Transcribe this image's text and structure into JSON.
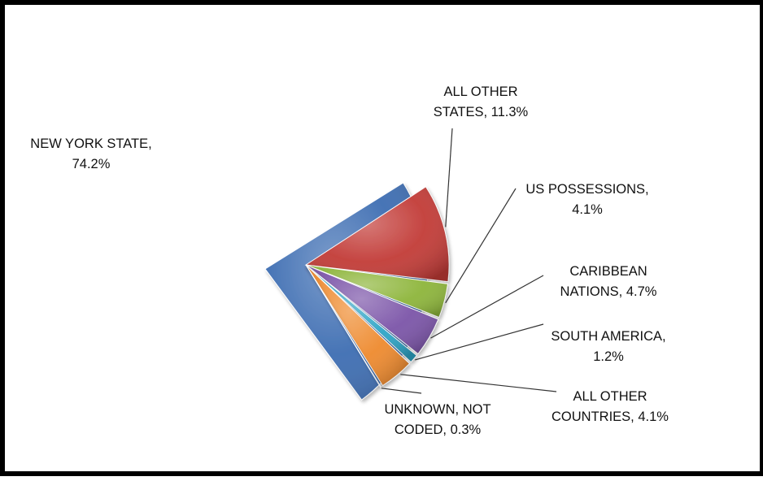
{
  "chart_data": {
    "type": "pie",
    "style": "exploded 3D pie",
    "legend": "none",
    "slices": [
      {
        "name": "NEW YORK STATE",
        "value": 74.2,
        "label_lines": [
          "NEW YORK STATE,",
          "74.2%"
        ],
        "color": "#3D6DB2"
      },
      {
        "name": "ALL OTHER STATES",
        "value": 11.3,
        "label_lines": [
          "ALL OTHER",
          "STATES,  11.3%"
        ],
        "color": "#C23B37"
      },
      {
        "name": "US POSSESSIONS",
        "value": 4.1,
        "label_lines": [
          "US POSSESSIONS,",
          "4.1%"
        ],
        "color": "#8DB53A"
      },
      {
        "name": "CARIBBEAN NATIONS",
        "value": 4.7,
        "label_lines": [
          "CARIBBEAN",
          "NATIONS, 4.7%"
        ],
        "color": "#7B54A8"
      },
      {
        "name": "SOUTH AMERICA",
        "value": 1.2,
        "label_lines": [
          "SOUTH AMERICA,",
          "1.2%"
        ],
        "color": "#2EA5C7"
      },
      {
        "name": "ALL OTHER COUNTRIES",
        "value": 4.1,
        "label_lines": [
          "ALL OTHER",
          "COUNTRIES, 4.1%"
        ],
        "color": "#EE8A2E"
      },
      {
        "name": "UNKNOWN, NOT CODED",
        "value": 0.3,
        "label_lines": [
          "UNKNOWN, NOT",
          "CODED, 0.3%"
        ],
        "color": "#9FB6D6"
      }
    ]
  }
}
